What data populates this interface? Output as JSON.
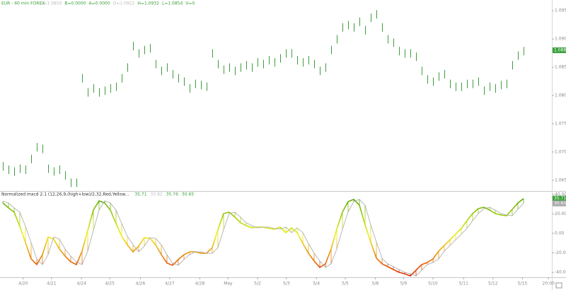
{
  "chart_data": [
    {
      "type": "bar_range",
      "title": "EUR - 60 min FOREX",
      "quote": [
        "L=1.0850",
        "B=0.0000",
        "A=0.0000",
        "O=1.0922",
        "H=1.0932",
        "L=1.0854",
        "V=0"
      ],
      "color": "#3f9b3f",
      "xlim": [
        -0.5,
        97
      ],
      "ylim": [
        1.0631,
        1.0969
      ],
      "yticks": [
        {
          "value": 1.095,
          "label": "1.0950"
        },
        {
          "value": 1.09,
          "label": "1.0900"
        },
        {
          "value": 1.085,
          "label": "1.0850"
        },
        {
          "value": 1.08,
          "label": "1.0800"
        },
        {
          "value": 1.075,
          "label": "1.0750"
        },
        {
          "value": 1.07,
          "label": "1.0700"
        },
        {
          "value": 1.065,
          "label": "1.0650"
        }
      ],
      "last": {
        "value": 1.088,
        "label": "1.0880"
      },
      "high": [
        1.0682,
        1.0676,
        1.0673,
        1.0678,
        1.0676,
        1.0695,
        1.0716,
        1.0713,
        1.0678,
        1.0673,
        1.0676,
        1.0666,
        1.0653,
        1.0653,
        1.0838,
        1.0813,
        1.082,
        1.0813,
        1.0816,
        1.082,
        1.0823,
        1.0838,
        1.0857,
        1.0895,
        1.0882,
        1.0888,
        1.0891,
        1.0863,
        1.0851,
        1.0857,
        1.0845,
        1.0838,
        1.0832,
        1.082,
        1.0828,
        1.0826,
        1.0823,
        1.0882,
        1.0863,
        1.0853,
        1.0857,
        1.0851,
        1.0857,
        1.0861,
        1.0857,
        1.0866,
        1.0863,
        1.087,
        1.0866,
        1.0873,
        1.0882,
        1.0882,
        1.087,
        1.0866,
        1.087,
        1.0863,
        1.0851,
        1.0857,
        1.0888,
        1.0907,
        1.0928,
        1.0932,
        1.0928,
        1.0938,
        1.0923,
        1.0945,
        1.0951,
        1.0928,
        1.0907,
        1.0901,
        1.0886,
        1.0882,
        1.0882,
        1.0876,
        1.0851,
        1.0836,
        1.0832,
        1.0841,
        1.0845,
        1.0828,
        1.0823,
        1.0823,
        1.0828,
        1.0828,
        1.0832,
        1.0816,
        1.0823,
        1.082,
        1.0826,
        1.0828,
        1.0861,
        1.0878,
        1.0886
      ],
      "low": [
        1.0667,
        1.0661,
        1.0658,
        1.0663,
        1.0661,
        1.068,
        1.0701,
        1.0698,
        1.0663,
        1.0658,
        1.0661,
        1.0651,
        1.0638,
        1.0638,
        1.0823,
        1.0798,
        1.0805,
        1.0798,
        1.0801,
        1.0805,
        1.0808,
        1.0823,
        1.0842,
        1.088,
        1.0867,
        1.0873,
        1.0876,
        1.0848,
        1.0836,
        1.0842,
        1.083,
        1.0823,
        1.0817,
        1.0805,
        1.0813,
        1.0811,
        1.0808,
        1.0867,
        1.0848,
        1.0838,
        1.0842,
        1.0836,
        1.0842,
        1.0846,
        1.0842,
        1.0851,
        1.0848,
        1.0855,
        1.0851,
        1.0858,
        1.0867,
        1.0867,
        1.0855,
        1.0851,
        1.0855,
        1.0848,
        1.0836,
        1.0842,
        1.0873,
        1.0892,
        1.0913,
        1.0917,
        1.0913,
        1.0923,
        1.0908,
        1.093,
        1.0936,
        1.0913,
        1.0892,
        1.0886,
        1.0871,
        1.0867,
        1.0867,
        1.0861,
        1.0836,
        1.0821,
        1.0817,
        1.0826,
        1.083,
        1.0813,
        1.0808,
        1.0808,
        1.0813,
        1.0813,
        1.0817,
        1.0801,
        1.0808,
        1.0805,
        1.0811,
        1.0813,
        1.0846,
        1.0863,
        1.0871
      ]
    },
    {
      "type": "line",
      "title": "Normalized macd 2.1 (12,26,9,(high+low)/2,32,Red,Yellow...",
      "readout": [
        {
          "value": 35.71,
          "label": "35.71"
        },
        {
          "value": 33.82,
          "label": "33.82"
        },
        {
          "value": 35.76,
          "label": "35.76"
        },
        {
          "value": 30.65,
          "label": "30.65"
        }
      ],
      "readout_colors": [
        "#3aa03a",
        "#bbbbbb",
        "#3aa03a",
        "#3aa03a"
      ],
      "colors": [
        "#e02000",
        "#f0f020",
        "#40a000"
      ],
      "signal_color": "#a8a8a8",
      "xlim": [
        -0.5,
        97
      ],
      "ylim": [
        -45,
        42
      ],
      "yticks": [
        {
          "value": 40,
          "label": "40.00"
        },
        {
          "value": 20,
          "label": "20.00"
        },
        {
          "value": 0,
          "label": "0.00"
        },
        {
          "value": -20,
          "label": "-20.00"
        },
        {
          "value": -40,
          "label": "-40.00"
        }
      ],
      "xticks": [
        {
          "value": 3.6,
          "label": "4/20"
        },
        {
          "value": 8.6,
          "label": "4/21"
        },
        {
          "value": 13.9,
          "label": "4/24"
        },
        {
          "value": 18.9,
          "label": "4/25"
        },
        {
          "value": 24.3,
          "label": "4/26"
        },
        {
          "value": 29.5,
          "label": "4/27"
        },
        {
          "value": 34.8,
          "label": "4/28"
        },
        {
          "value": 39.8,
          "label": "May"
        },
        {
          "value": 45,
          "label": "5/2"
        },
        {
          "value": 50.1,
          "label": "5/3"
        },
        {
          "value": 55.4,
          "label": "5/4"
        },
        {
          "value": 60.5,
          "label": "5/5"
        },
        {
          "value": 65.8,
          "label": "5/8"
        },
        {
          "value": 70.8,
          "label": "5/9"
        },
        {
          "value": 76,
          "label": "5/10"
        },
        {
          "value": 81.4,
          "label": "5/11"
        },
        {
          "value": 86.6,
          "label": "5/12"
        },
        {
          "value": 91.8,
          "label": "5/15"
        },
        {
          "value": 96.4,
          "label": "20:00"
        }
      ],
      "last": [
        {
          "value": 35.71,
          "label": "35.71"
        },
        {
          "value": 30.65,
          "label": "30.65"
        }
      ],
      "series": [
        {
          "values": [
            31.1,
            26.1,
            21.7,
            7.2,
            -9.5,
            -26.2,
            -32.0,
            -21.8,
            -3.7,
            -5.9,
            -16.0,
            -23.3,
            -29.1,
            -32.0,
            -18.2,
            2.9,
            23.9,
            33.3,
            31.1,
            23.9,
            10.1,
            -3.0,
            -11.7,
            -18.9,
            -13.1,
            -4.4,
            -5.1,
            -11.7,
            -21.8,
            -30.5,
            -32.7,
            -26.9,
            -21.8,
            -18.9,
            -18.9,
            -20.4,
            -20.4,
            -14.6,
            3.6,
            20.3,
            21.7,
            16.6,
            10.8,
            7.9,
            5.7,
            6.5,
            6.5,
            5.0,
            4.3,
            6.5,
            0.7,
            5.7,
            0.7,
            -10.2,
            -20.4,
            -28.3,
            -34.9,
            -31.2,
            -16.0,
            4.3,
            21.7,
            32.6,
            34.8,
            28.9,
            8.7,
            -8.8,
            -25.4,
            -31.2,
            -34.1,
            -37.0,
            -39.9,
            -41.4,
            -43.6,
            -37.8,
            -32.0,
            -29.8,
            -26.2,
            -18.2,
            -12.4,
            -6.6,
            -0.8,
            5.0,
            13.0,
            20.3,
            25.3,
            26.8,
            23.9,
            20.3,
            18.8,
            18.1,
            24.6,
            31.1,
            35.71
          ]
        },
        {
          "values": [
            33.0,
            31.1,
            26.1,
            21.7,
            7.2,
            -9.5,
            -26.2,
            -32.0,
            -21.8,
            -3.7,
            -5.9,
            -16.0,
            -23.3,
            -29.1,
            -32.0,
            -18.2,
            2.9,
            23.9,
            33.3,
            31.1,
            23.9,
            10.1,
            -3.0,
            -11.7,
            -18.9,
            -13.1,
            -4.4,
            -5.1,
            -11.7,
            -21.8,
            -30.5,
            -32.7,
            -26.9,
            -21.8,
            -18.9,
            -18.9,
            -20.4,
            -20.4,
            -14.6,
            3.6,
            20.3,
            21.7,
            16.6,
            10.8,
            7.9,
            5.7,
            6.5,
            6.5,
            5.0,
            4.3,
            6.5,
            0.7,
            5.7,
            0.7,
            -10.2,
            -20.4,
            -28.3,
            -34.9,
            -31.2,
            -16.0,
            4.3,
            21.7,
            32.6,
            34.8,
            28.9,
            8.7,
            -8.8,
            -25.4,
            -31.2,
            -34.1,
            -37.0,
            -39.9,
            -41.4,
            -43.6,
            -37.8,
            -32.0,
            -29.8,
            -26.2,
            -18.2,
            -12.4,
            -6.6,
            -0.8,
            5.0,
            13.0,
            20.3,
            25.3,
            26.8,
            23.9,
            20.3,
            18.8,
            18.1,
            24.6,
            30.65
          ]
        }
      ]
    }
  ]
}
